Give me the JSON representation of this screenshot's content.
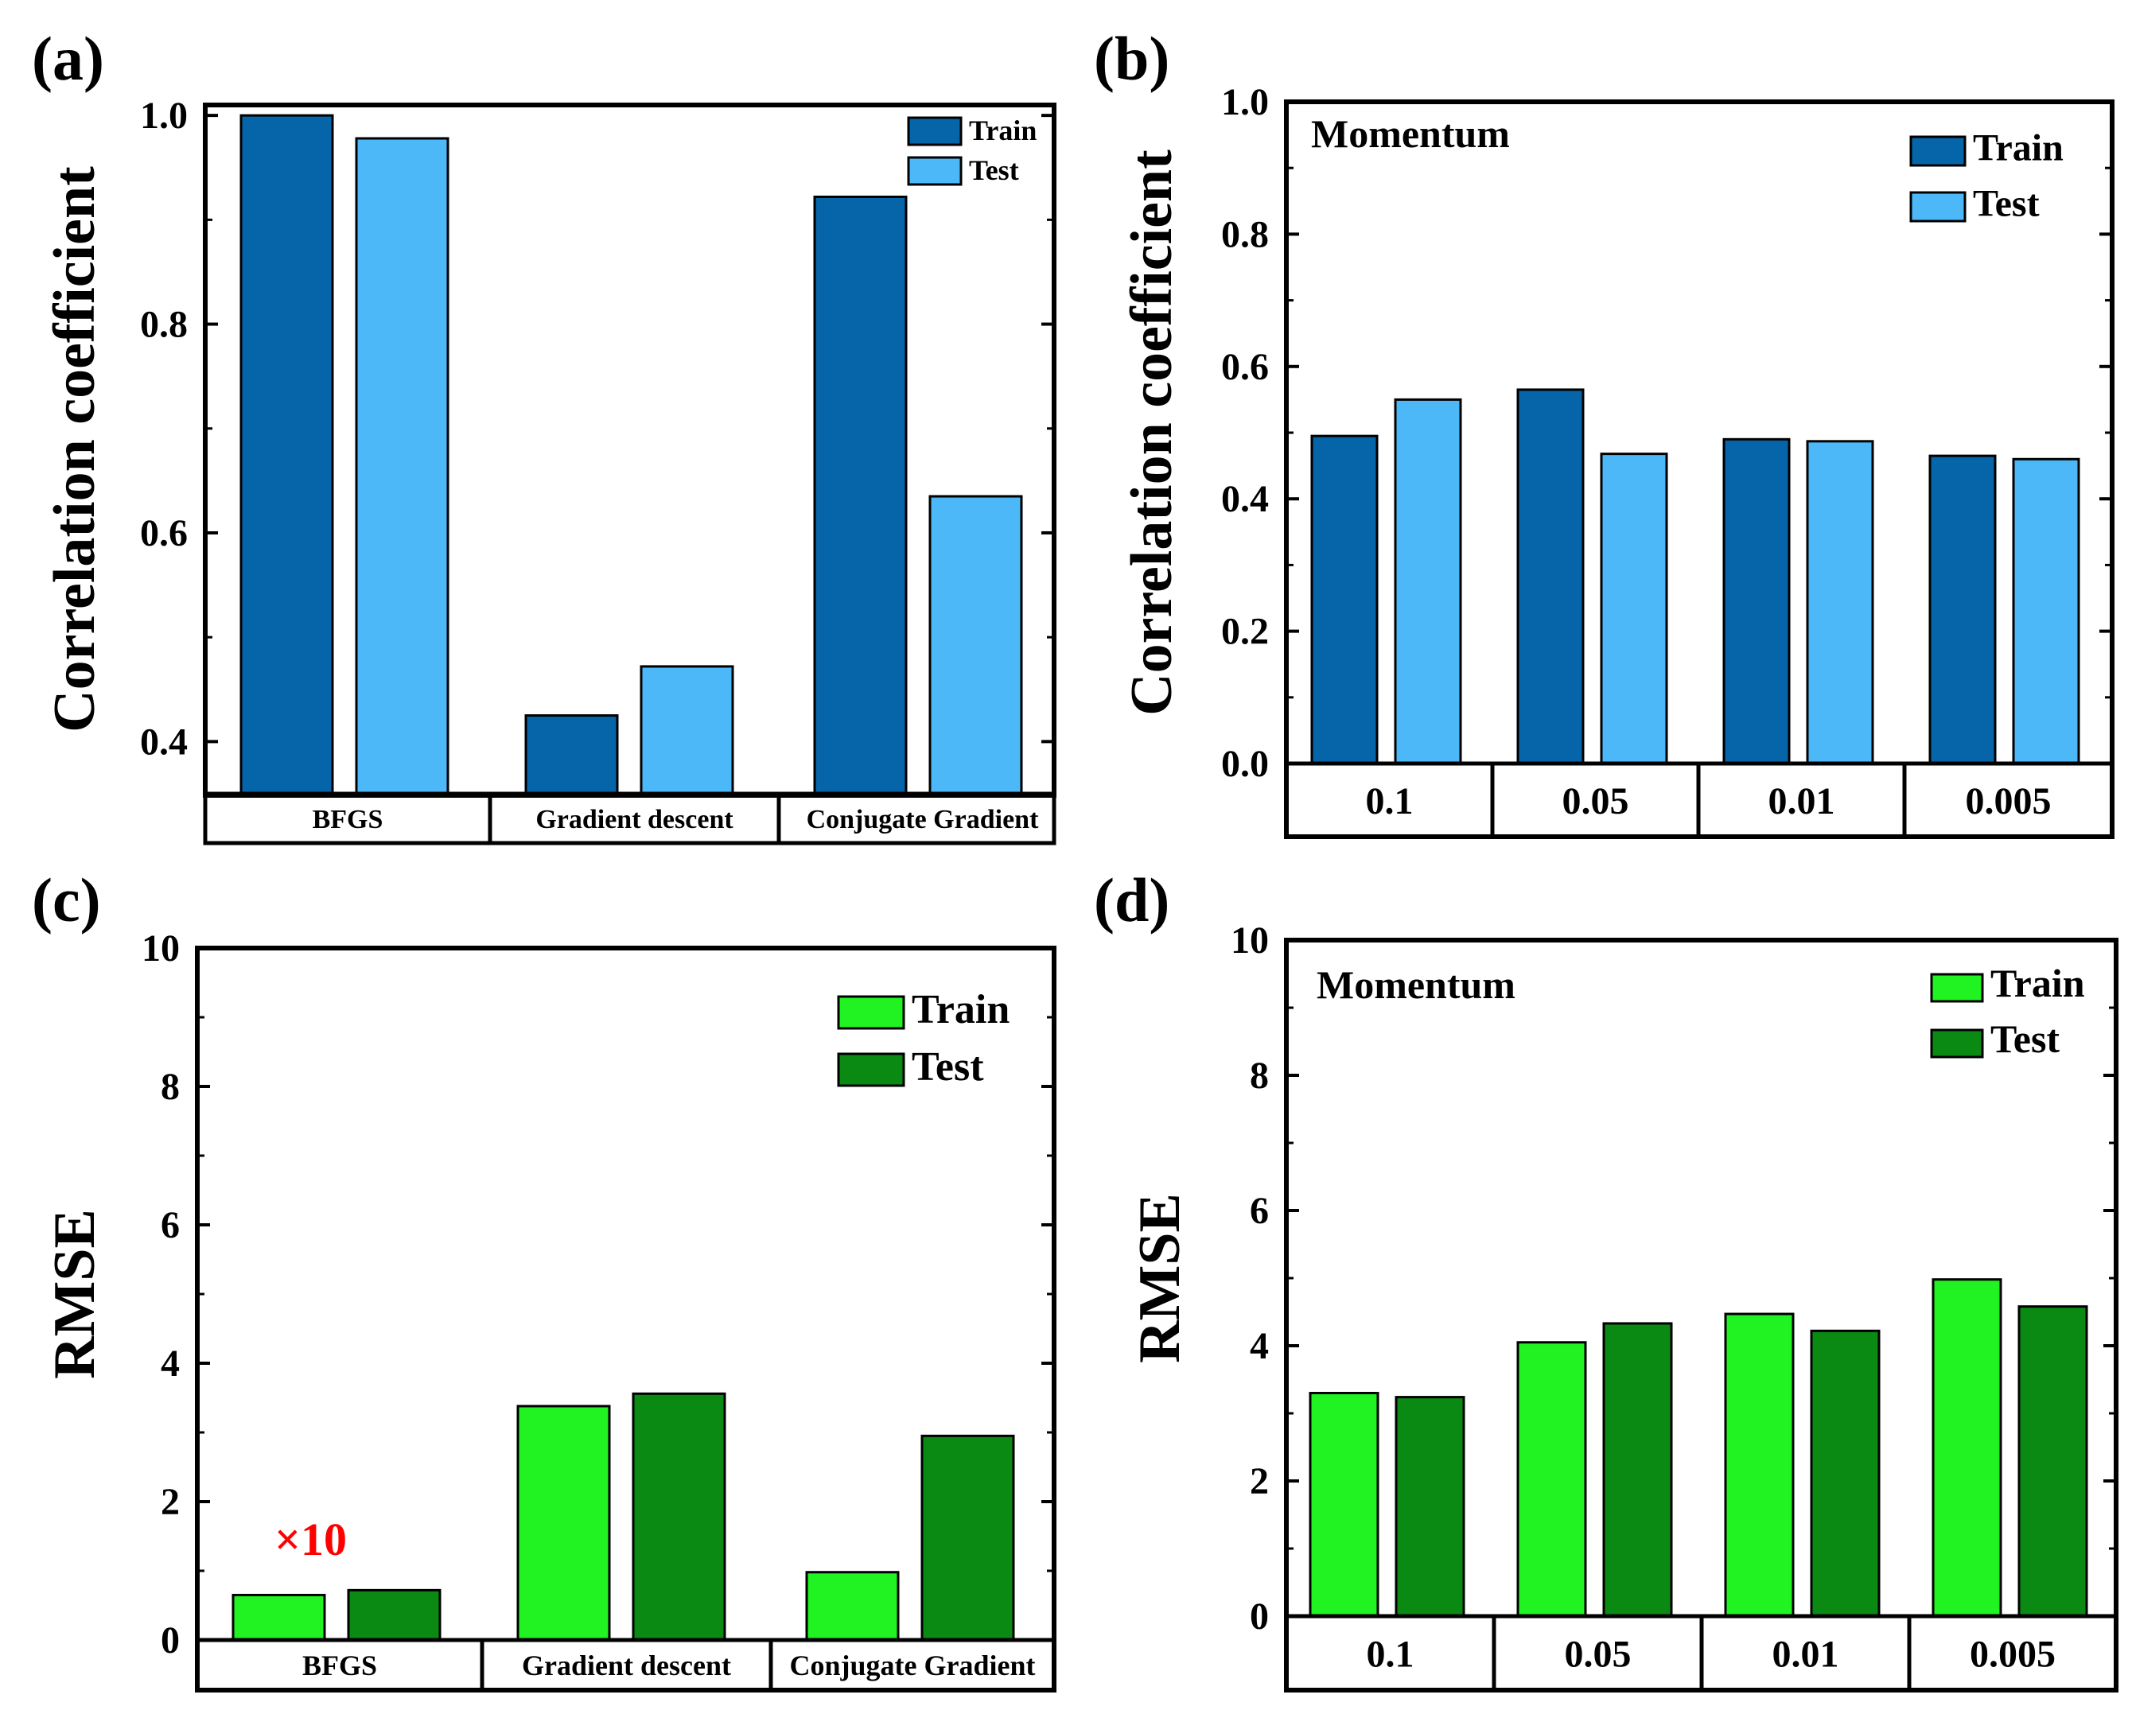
{
  "colors": {
    "corr_train": "#0565a8",
    "corr_test": "#4db8f7",
    "rmse_train": "#21f221",
    "rmse_test": "#0a8a12",
    "annotation": "#ff0000"
  },
  "chart_data": [
    {
      "id": "a",
      "panel_label": "(a)",
      "type": "bar",
      "title": "",
      "xlabel": "",
      "ylabel": "Correlation coefficient",
      "ylim": [
        0.35,
        1.01
      ],
      "yticks": [
        0.4,
        0.6,
        0.8,
        1.0
      ],
      "ytick_labels": [
        "0.4",
        "0.6",
        "0.8",
        "1.0"
      ],
      "categories": [
        "BFGS",
        "Gradient descent",
        "Conjugate Gradient"
      ],
      "series": [
        {
          "name": "Train",
          "values": [
            1.0,
            0.425,
            0.922
          ]
        },
        {
          "name": "Test",
          "values": [
            0.978,
            0.472,
            0.635
          ]
        }
      ],
      "legend": "top-right"
    },
    {
      "id": "b",
      "panel_label": "(b)",
      "type": "bar",
      "title": "Momentum",
      "xlabel": "",
      "ylabel": "Correlation coefficient",
      "ylim": [
        0.0,
        1.0
      ],
      "yticks": [
        0.0,
        0.2,
        0.4,
        0.6,
        0.8,
        1.0
      ],
      "ytick_labels": [
        "0.0",
        "0.2",
        "0.4",
        "0.6",
        "0.8",
        "1.0"
      ],
      "categories": [
        "0.1",
        "0.05",
        "0.01",
        "0.005"
      ],
      "series": [
        {
          "name": "Train",
          "values": [
            0.495,
            0.565,
            0.49,
            0.465
          ]
        },
        {
          "name": "Test",
          "values": [
            0.55,
            0.468,
            0.487,
            0.46
          ]
        }
      ],
      "legend": "top-right"
    },
    {
      "id": "c",
      "panel_label": "(c)",
      "type": "bar",
      "title": "",
      "xlabel": "",
      "ylabel": "RMSE",
      "ylim": [
        0,
        10
      ],
      "yticks": [
        0,
        2,
        4,
        6,
        8,
        10
      ],
      "ytick_labels": [
        "0",
        "2",
        "4",
        "6",
        "8",
        "10"
      ],
      "categories": [
        "BFGS",
        "Gradient descent",
        "Conjugate Gradient"
      ],
      "series": [
        {
          "name": "Train",
          "values": [
            0.65,
            3.38,
            0.98
          ]
        },
        {
          "name": "Test",
          "values": [
            0.72,
            3.56,
            2.95
          ]
        }
      ],
      "annotation": "×10",
      "legend": "top-right"
    },
    {
      "id": "d",
      "panel_label": "(d)",
      "type": "bar",
      "title": "Momentum",
      "xlabel": "",
      "ylabel": "RMSE",
      "ylim": [
        0,
        10
      ],
      "yticks": [
        0,
        2,
        4,
        6,
        8,
        10
      ],
      "ytick_labels": [
        "0",
        "2",
        "4",
        "6",
        "8",
        "10"
      ],
      "categories": [
        "0.1",
        "0.05",
        "0.01",
        "0.005"
      ],
      "series": [
        {
          "name": "Train",
          "values": [
            3.3,
            4.05,
            4.47,
            4.98
          ]
        },
        {
          "name": "Test",
          "values": [
            3.24,
            4.33,
            4.22,
            4.58
          ]
        }
      ],
      "legend": "top-right"
    }
  ]
}
